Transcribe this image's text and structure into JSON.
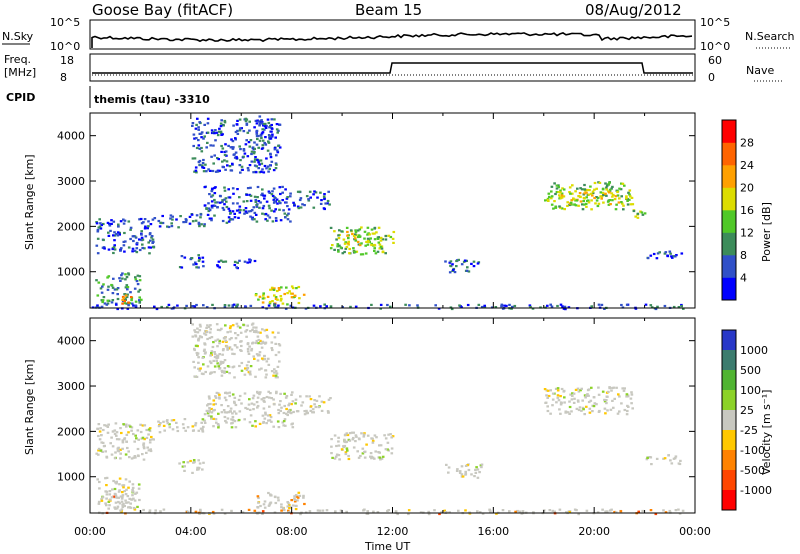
{
  "header": {
    "station": "Goose Bay (fitACF)",
    "beam": "Beam 15",
    "date": "08/Aug/2012"
  },
  "nsky_panel": {
    "label_left": "N.Sky",
    "ticks_left": [
      "10^5",
      "10^0"
    ],
    "label_right": "N.Search",
    "ticks_right": [
      "10^5",
      "10^0"
    ]
  },
  "freq_panel": {
    "label_left_1": "Freq.",
    "label_left_2": "[MHz]",
    "ticks_left": [
      "18",
      "8"
    ],
    "label_right": "Nave",
    "ticks_right": [
      "60",
      "0"
    ]
  },
  "cpid_panel": {
    "label": "CPID",
    "text": "themis (tau) -3310"
  },
  "colors": {
    "grey": "#c8c8c0",
    "power": [
      "#0000ff",
      "#3050c8",
      "#3c8c5a",
      "#50c828",
      "#dcdc00",
      "#ffa000",
      "#ff6400",
      "#ff0000"
    ],
    "velocity": [
      "#2838c8",
      "#3c7c6e",
      "#50b432",
      "#8cd228",
      "#c8c8c0",
      "#ffc800",
      "#ff8200",
      "#ff4600",
      "#ff0000"
    ]
  },
  "chart_data": [
    {
      "type": "heatmap",
      "name": "power",
      "ylabel": "Slant Range [km]",
      "yticks": [
        "1000",
        "2000",
        "3000",
        "4000"
      ],
      "ylim": [
        200,
        4500
      ],
      "xlim_hours": [
        0,
        24
      ],
      "colorbar_label": "Power [dB]",
      "colorbar_ticks": [
        "4",
        "8",
        "12",
        "16",
        "20",
        "24",
        "28"
      ],
      "colorbar_range": [
        0,
        32
      ],
      "regions": [
        {
          "t0": 0.2,
          "t1": 2.5,
          "r0": 1400,
          "r1": 2200,
          "level": 1
        },
        {
          "t0": 2.5,
          "t1": 4.5,
          "r0": 2000,
          "r1": 2300,
          "level": 1
        },
        {
          "t0": 4.5,
          "t1": 8.0,
          "r0": 2100,
          "r1": 2900,
          "level": 1
        },
        {
          "t0": 8.0,
          "t1": 9.5,
          "r0": 2400,
          "r1": 2800,
          "level": 1
        },
        {
          "t0": 9.5,
          "t1": 12.0,
          "r0": 1400,
          "r1": 2000,
          "level": 3
        },
        {
          "t0": 10.0,
          "t1": 11.5,
          "r0": 1600,
          "r1": 1900,
          "level": 4
        },
        {
          "t0": 4.0,
          "t1": 7.5,
          "r0": 3200,
          "r1": 4400,
          "level": 1
        },
        {
          "t0": 6.5,
          "t1": 7.2,
          "r0": 3900,
          "r1": 4500,
          "level": 1
        },
        {
          "t0": 0.2,
          "t1": 2.0,
          "r0": 300,
          "r1": 1000,
          "level": 2
        },
        {
          "t0": 1.0,
          "t1": 1.6,
          "r0": 300,
          "r1": 500,
          "level": 6
        },
        {
          "t0": 6.5,
          "t1": 8.5,
          "r0": 300,
          "r1": 700,
          "level": 4
        },
        {
          "t0": 3.5,
          "t1": 4.5,
          "r0": 1100,
          "r1": 1400,
          "level": 1
        },
        {
          "t0": 5.0,
          "t1": 6.5,
          "r0": 1100,
          "r1": 1300,
          "level": 1
        },
        {
          "t0": 14.0,
          "t1": 15.5,
          "r0": 1000,
          "r1": 1300,
          "level": 1
        },
        {
          "t0": 18.0,
          "t1": 21.5,
          "r0": 2400,
          "r1": 3000,
          "level": 3
        },
        {
          "t0": 18.5,
          "t1": 21.0,
          "r0": 2500,
          "r1": 2800,
          "level": 4
        },
        {
          "t0": 21.5,
          "t1": 22.0,
          "r0": 2100,
          "r1": 2400,
          "level": 3
        },
        {
          "t0": 22.0,
          "t1": 23.5,
          "r0": 1300,
          "r1": 1500,
          "level": 1
        },
        {
          "t0": 0.0,
          "t1": 23.5,
          "r0": 200,
          "r1": 300,
          "level": 1
        }
      ]
    },
    {
      "type": "heatmap",
      "name": "velocity",
      "ylabel": "Slant Range [km]",
      "yticks": [
        "1000",
        "2000",
        "3000",
        "4000"
      ],
      "ylim": [
        200,
        4500
      ],
      "xlim_hours": [
        0,
        24
      ],
      "xticks": [
        "00:00",
        "04:00",
        "08:00",
        "12:00",
        "16:00",
        "20:00",
        "00:00"
      ],
      "xlabel": "Time UT",
      "colorbar_label": "Velocity [m s⁻¹]",
      "colorbar_ticks": [
        "1000",
        "500",
        "100",
        "25",
        "-25",
        "-100",
        "-500",
        "-1000"
      ],
      "regions": [
        {
          "t0": 0.2,
          "t1": 2.5,
          "r0": 1400,
          "r1": 2200,
          "level": 4
        },
        {
          "t0": 2.5,
          "t1": 4.5,
          "r0": 2000,
          "r1": 2300,
          "level": 4
        },
        {
          "t0": 4.5,
          "t1": 8.0,
          "r0": 2100,
          "r1": 2900,
          "level": 4
        },
        {
          "t0": 8.0,
          "t1": 9.5,
          "r0": 2400,
          "r1": 2800,
          "level": 4
        },
        {
          "t0": 9.5,
          "t1": 12.0,
          "r0": 1400,
          "r1": 2000,
          "level": 4
        },
        {
          "t0": 4.0,
          "t1": 7.5,
          "r0": 3200,
          "r1": 4400,
          "level": 4
        },
        {
          "t0": 0.2,
          "t1": 2.0,
          "r0": 300,
          "r1": 1000,
          "level": 4
        },
        {
          "t0": 0.5,
          "t1": 1.5,
          "r0": 300,
          "r1": 600,
          "level": 6
        },
        {
          "t0": 6.5,
          "t1": 8.5,
          "r0": 300,
          "r1": 700,
          "level": 5
        },
        {
          "t0": 3.5,
          "t1": 4.5,
          "r0": 1100,
          "r1": 1400,
          "level": 4
        },
        {
          "t0": 14.0,
          "t1": 15.5,
          "r0": 1000,
          "r1": 1300,
          "level": 4
        },
        {
          "t0": 18.0,
          "t1": 21.5,
          "r0": 2400,
          "r1": 3000,
          "level": 4
        },
        {
          "t0": 22.0,
          "t1": 23.5,
          "r0": 1300,
          "r1": 1500,
          "level": 4
        },
        {
          "t0": 0.0,
          "t1": 23.5,
          "r0": 200,
          "r1": 300,
          "level": 6
        }
      ]
    }
  ]
}
